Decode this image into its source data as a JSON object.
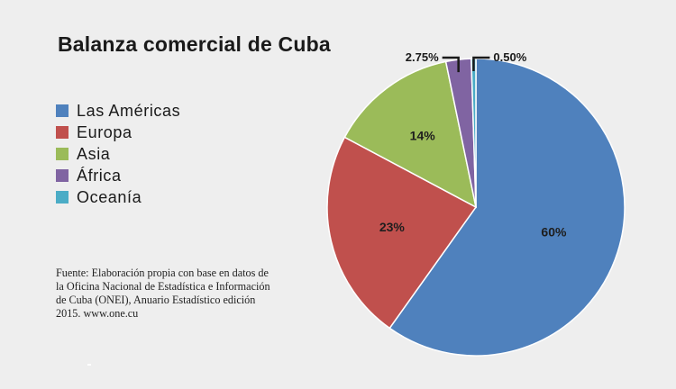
{
  "chart_data": {
    "type": "pie",
    "title": "Balanza comercial de Cuba",
    "categories": [
      "Las Américas",
      "Europa",
      "Asia",
      "África",
      "Oceanía"
    ],
    "values": [
      60,
      23,
      14,
      2.75,
      0.5
    ],
    "data_labels": [
      "60%",
      "23%",
      "14%",
      "2.75%",
      "0.50%"
    ],
    "colors": [
      "#4f81bd",
      "#c0504d",
      "#9bbb59",
      "#8064a2",
      "#4bacc6"
    ],
    "legend_position": "left",
    "source": "Fuente: Elaboración propia con base en datos de la Oficina Nacional de Estadística e Información de Cuba (ONEI), Anuario Estadístico edición 2015. www.one.cu"
  }
}
